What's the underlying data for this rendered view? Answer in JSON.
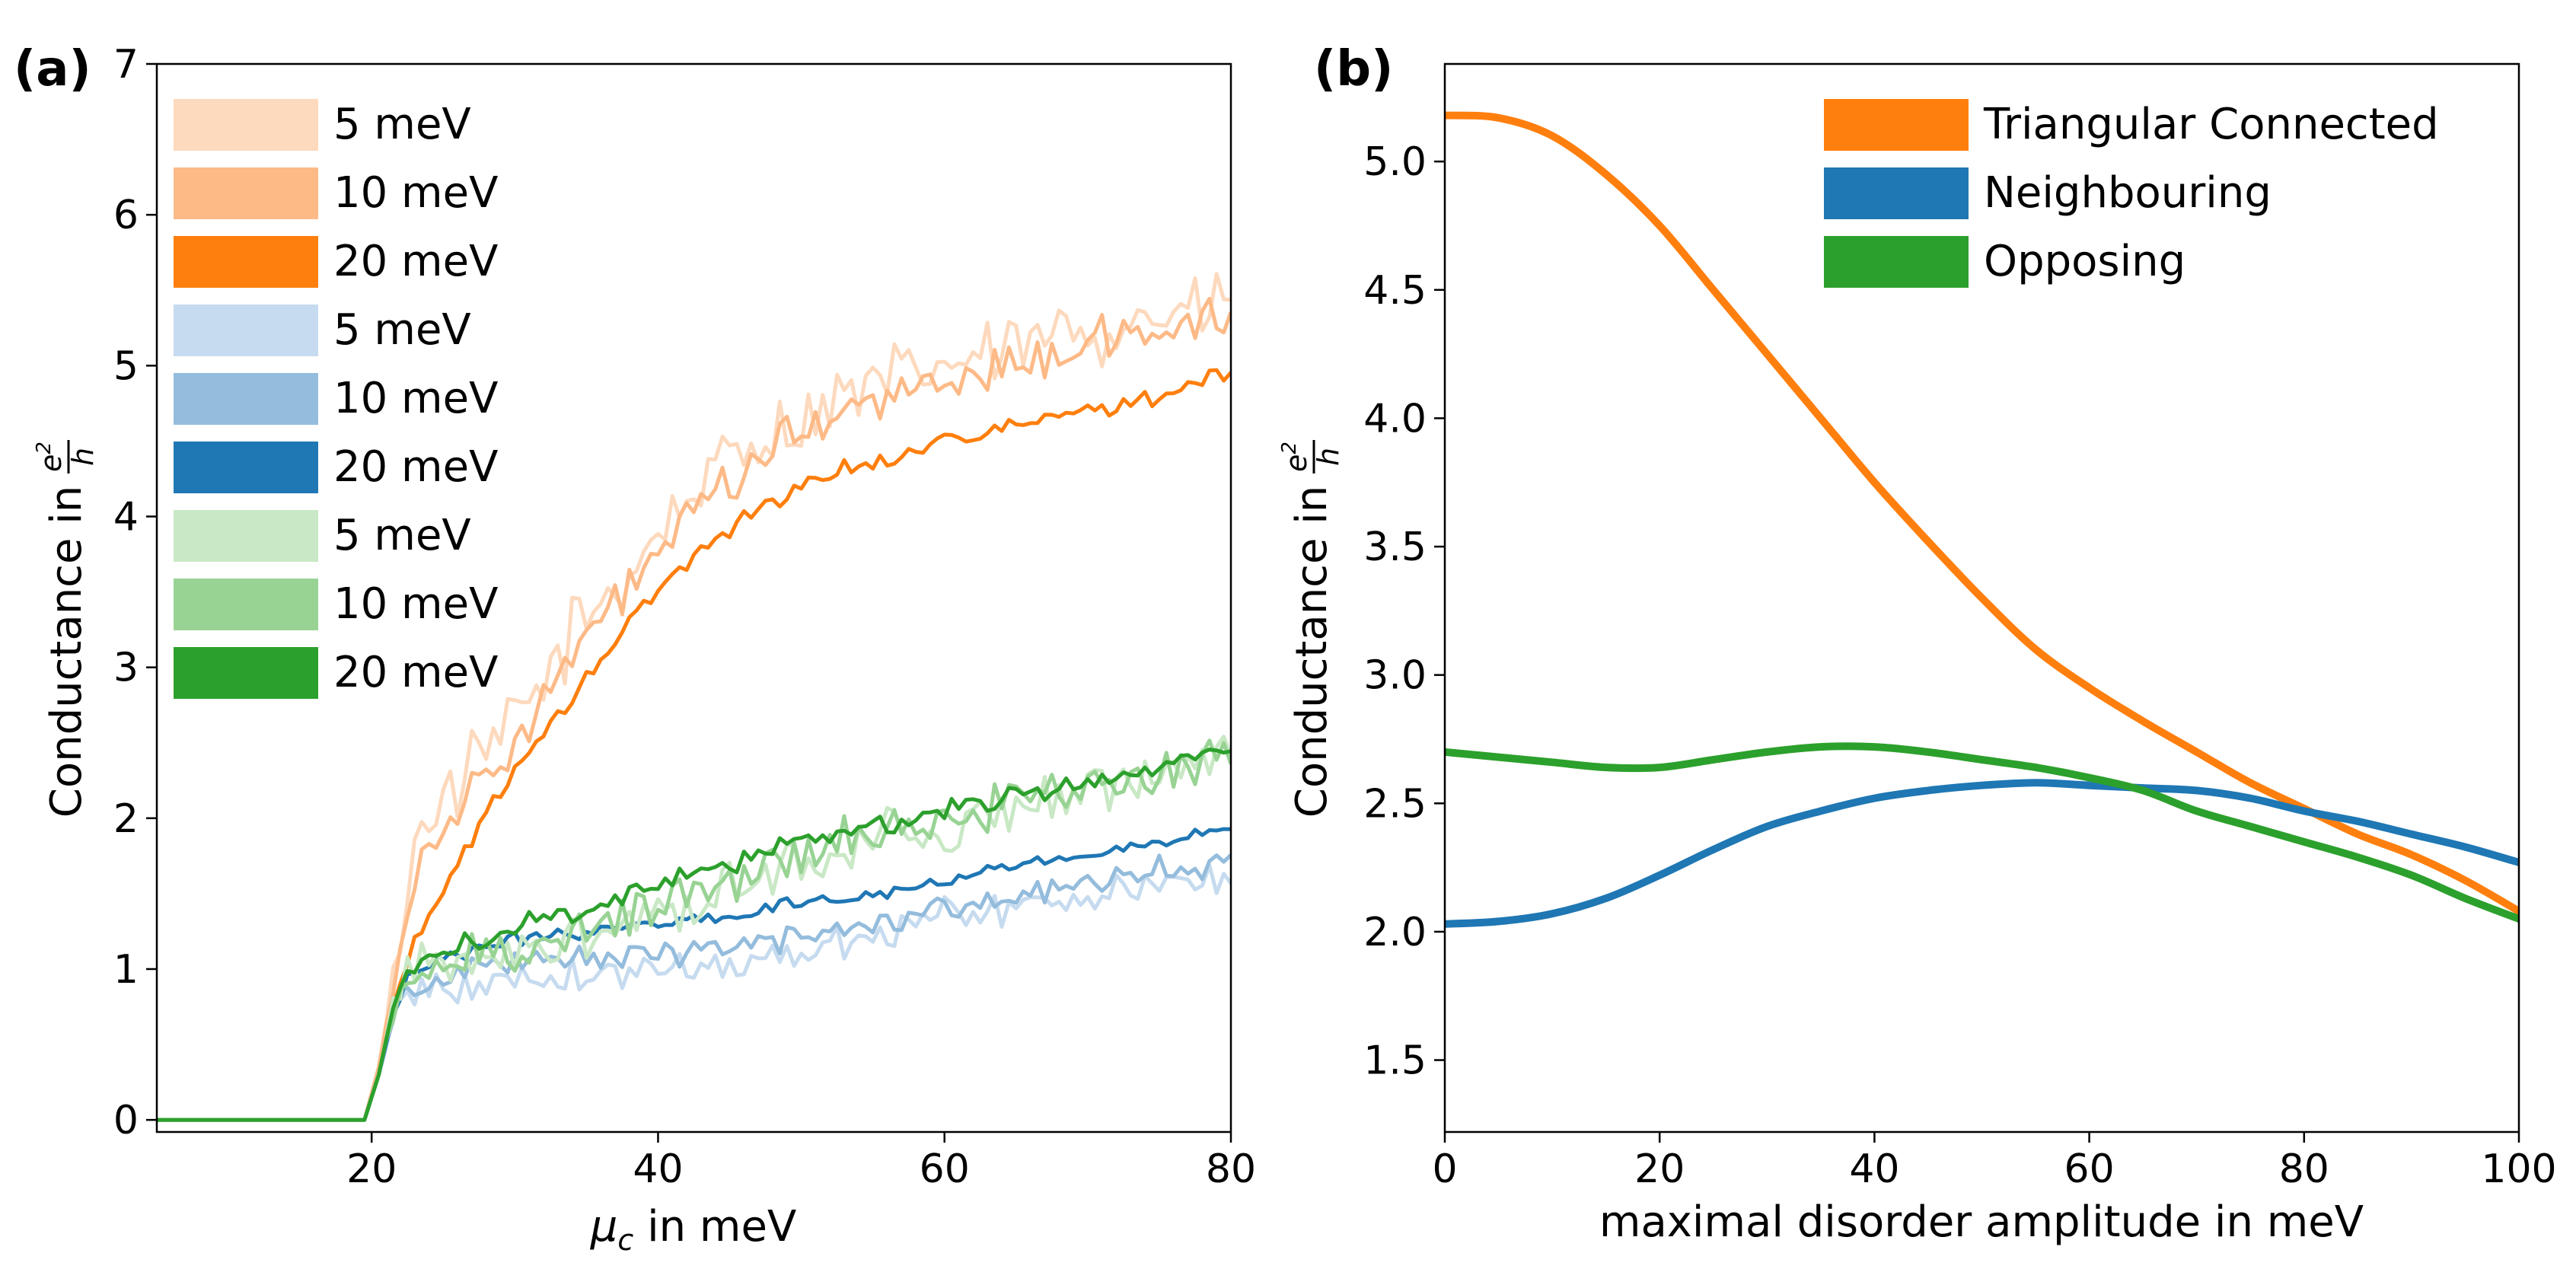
{
  "chart_data": [
    {
      "type": "line",
      "panel_label": "(a)",
      "xlabel_symbol": "μ",
      "xlabel_sub": "c",
      "xlabel_rest": " in meV",
      "ylabel_text": "Conductance in ",
      "ylabel_num": "e",
      "ylabel_num_sup": "2",
      "ylabel_den": "h",
      "xlim": [
        5,
        80
      ],
      "ylim": [
        -0.08,
        7
      ],
      "xticks": [
        20,
        40,
        60,
        80
      ],
      "xtick_labels": [
        "20",
        "40",
        "60",
        "80"
      ],
      "yticks": [
        0,
        1,
        2,
        3,
        4,
        5,
        6,
        7
      ],
      "ytick_labels": [
        "0",
        "1",
        "2",
        "3",
        "4",
        "5",
        "6",
        "7"
      ],
      "legend_location": "upper-left",
      "series": [
        {
          "name": "5 meV",
          "color": "#fdd9bd",
          "base": [
            [
              5,
              0
            ],
            [
              19.5,
              0
            ],
            [
              20.5,
              0.35
            ],
            [
              21.5,
              0.9
            ],
            [
              22.5,
              1.6
            ],
            [
              24,
              2.05
            ],
            [
              26,
              2.2
            ],
            [
              28,
              2.4
            ],
            [
              30,
              2.65
            ],
            [
              32,
              2.9
            ],
            [
              34,
              3.2
            ],
            [
              36,
              3.45
            ],
            [
              38,
              3.65
            ],
            [
              40,
              3.9
            ],
            [
              42,
              4.1
            ],
            [
              44,
              4.3
            ],
            [
              46,
              4.45
            ],
            [
              48,
              4.55
            ],
            [
              50,
              4.65
            ],
            [
              52,
              4.75
            ],
            [
              55,
              4.85
            ],
            [
              60,
              5.0
            ],
            [
              65,
              5.1
            ],
            [
              70,
              5.25
            ],
            [
              75,
              5.35
            ],
            [
              80,
              5.4
            ]
          ],
          "noise": 0.22
        },
        {
          "name": "10 meV",
          "color": "#fdba87",
          "base": [
            [
              5,
              0
            ],
            [
              19.5,
              0
            ],
            [
              20.5,
              0.35
            ],
            [
              21.5,
              0.9
            ],
            [
              22.5,
              1.45
            ],
            [
              24,
              1.85
            ],
            [
              26,
              2.05
            ],
            [
              28,
              2.25
            ],
            [
              30,
              2.5
            ],
            [
              32,
              2.8
            ],
            [
              34,
              3.05
            ],
            [
              36,
              3.3
            ],
            [
              38,
              3.55
            ],
            [
              40,
              3.75
            ],
            [
              42,
              3.95
            ],
            [
              44,
              4.15
            ],
            [
              46,
              4.3
            ],
            [
              48,
              4.45
            ],
            [
              50,
              4.55
            ],
            [
              52,
              4.65
            ],
            [
              55,
              4.75
            ],
            [
              60,
              4.9
            ],
            [
              65,
              5.0
            ],
            [
              70,
              5.15
            ],
            [
              75,
              5.25
            ],
            [
              80,
              5.3
            ]
          ],
          "noise": 0.13
        },
        {
          "name": "20 meV",
          "color": "#ff7f0e",
          "base": [
            [
              5,
              0
            ],
            [
              19.5,
              0
            ],
            [
              20.5,
              0.3
            ],
            [
              21.5,
              0.75
            ],
            [
              22.5,
              1.05
            ],
            [
              24,
              1.35
            ],
            [
              26,
              1.7
            ],
            [
              28,
              2.05
            ],
            [
              30,
              2.3
            ],
            [
              32,
              2.55
            ],
            [
              34,
              2.8
            ],
            [
              36,
              3.05
            ],
            [
              38,
              3.3
            ],
            [
              40,
              3.5
            ],
            [
              42,
              3.7
            ],
            [
              44,
              3.85
            ],
            [
              46,
              4.0
            ],
            [
              48,
              4.1
            ],
            [
              50,
              4.2
            ],
            [
              52,
              4.3
            ],
            [
              55,
              4.35
            ],
            [
              60,
              4.5
            ],
            [
              65,
              4.6
            ],
            [
              70,
              4.7
            ],
            [
              75,
              4.8
            ],
            [
              80,
              4.95
            ]
          ],
          "noise": 0.05
        },
        {
          "name": "5 meV",
          "color": "#c6dbef",
          "base": [
            [
              5,
              0
            ],
            [
              19.5,
              0
            ],
            [
              20.5,
              0.3
            ],
            [
              21.5,
              0.65
            ],
            [
              22.5,
              0.85
            ],
            [
              24,
              0.9
            ],
            [
              26,
              0.85
            ],
            [
              28,
              0.9
            ],
            [
              30,
              0.95
            ],
            [
              35,
              0.95
            ],
            [
              40,
              1.0
            ],
            [
              45,
              1.05
            ],
            [
              50,
              1.1
            ],
            [
              55,
              1.25
            ],
            [
              60,
              1.35
            ],
            [
              65,
              1.4
            ],
            [
              70,
              1.5
            ],
            [
              75,
              1.55
            ],
            [
              80,
              1.6
            ]
          ],
          "noise": 0.1
        },
        {
          "name": "10 meV",
          "color": "#94bcdc",
          "base": [
            [
              5,
              0
            ],
            [
              19.5,
              0
            ],
            [
              20.5,
              0.3
            ],
            [
              21.5,
              0.7
            ],
            [
              22.5,
              0.9
            ],
            [
              24,
              0.95
            ],
            [
              26,
              0.95
            ],
            [
              28,
              1.0
            ],
            [
              30,
              1.05
            ],
            [
              35,
              1.05
            ],
            [
              40,
              1.1
            ],
            [
              45,
              1.15
            ],
            [
              50,
              1.2
            ],
            [
              55,
              1.3
            ],
            [
              60,
              1.4
            ],
            [
              65,
              1.5
            ],
            [
              70,
              1.55
            ],
            [
              75,
              1.65
            ],
            [
              80,
              1.7
            ]
          ],
          "noise": 0.08
        },
        {
          "name": "20 meV",
          "color": "#1f77b4",
          "base": [
            [
              5,
              0
            ],
            [
              19.5,
              0
            ],
            [
              20.5,
              0.3
            ],
            [
              21.5,
              0.7
            ],
            [
              22.5,
              0.95
            ],
            [
              24,
              1.05
            ],
            [
              26,
              1.1
            ],
            [
              28,
              1.15
            ],
            [
              30,
              1.2
            ],
            [
              35,
              1.25
            ],
            [
              40,
              1.3
            ],
            [
              45,
              1.35
            ],
            [
              50,
              1.45
            ],
            [
              55,
              1.5
            ],
            [
              60,
              1.6
            ],
            [
              65,
              1.7
            ],
            [
              70,
              1.75
            ],
            [
              75,
              1.85
            ],
            [
              80,
              1.95
            ]
          ],
          "noise": 0.04
        },
        {
          "name": "5 meV",
          "color": "#c9e8c5",
          "base": [
            [
              5,
              0
            ],
            [
              19.5,
              0
            ],
            [
              20.5,
              0.3
            ],
            [
              21.5,
              0.75
            ],
            [
              22.5,
              0.95
            ],
            [
              24,
              1.0
            ],
            [
              26,
              1.0
            ],
            [
              28,
              1.05
            ],
            [
              30,
              1.1
            ],
            [
              35,
              1.2
            ],
            [
              40,
              1.35
            ],
            [
              45,
              1.55
            ],
            [
              50,
              1.7
            ],
            [
              55,
              1.85
            ],
            [
              60,
              1.95
            ],
            [
              65,
              2.05
            ],
            [
              70,
              2.15
            ],
            [
              75,
              2.3
            ],
            [
              80,
              2.4
            ]
          ],
          "noise": 0.16
        },
        {
          "name": "10 meV",
          "color": "#98d394",
          "base": [
            [
              5,
              0
            ],
            [
              19.5,
              0
            ],
            [
              20.5,
              0.3
            ],
            [
              21.5,
              0.75
            ],
            [
              22.5,
              0.95
            ],
            [
              24,
              1.0
            ],
            [
              26,
              1.05
            ],
            [
              28,
              1.1
            ],
            [
              30,
              1.15
            ],
            [
              35,
              1.25
            ],
            [
              40,
              1.4
            ],
            [
              45,
              1.6
            ],
            [
              50,
              1.75
            ],
            [
              55,
              1.9
            ],
            [
              60,
              2.0
            ],
            [
              65,
              2.1
            ],
            [
              70,
              2.2
            ],
            [
              75,
              2.3
            ],
            [
              80,
              2.4
            ]
          ],
          "noise": 0.14
        },
        {
          "name": "20 meV",
          "color": "#2ca02c",
          "base": [
            [
              5,
              0
            ],
            [
              19.5,
              0
            ],
            [
              20.5,
              0.3
            ],
            [
              21.5,
              0.75
            ],
            [
              22.5,
              0.95
            ],
            [
              24,
              1.05
            ],
            [
              26,
              1.15
            ],
            [
              28,
              1.2
            ],
            [
              30,
              1.3
            ],
            [
              35,
              1.4
            ],
            [
              40,
              1.55
            ],
            [
              45,
              1.7
            ],
            [
              50,
              1.85
            ],
            [
              55,
              1.95
            ],
            [
              60,
              2.05
            ],
            [
              65,
              2.15
            ],
            [
              70,
              2.25
            ],
            [
              75,
              2.35
            ],
            [
              80,
              2.45
            ]
          ],
          "noise": 0.06
        }
      ]
    },
    {
      "type": "line",
      "panel_label": "(b)",
      "xlabel": "maximal disorder amplitude in meV",
      "ylabel_text": "Conductance in ",
      "ylabel_num": "e",
      "ylabel_num_sup": "2",
      "ylabel_den": "h",
      "xlim": [
        0,
        100
      ],
      "ylim": [
        1.22,
        5.38
      ],
      "xticks": [
        0,
        20,
        40,
        60,
        80,
        100
      ],
      "xtick_labels": [
        "0",
        "20",
        "40",
        "60",
        "80",
        "100"
      ],
      "yticks": [
        1.5,
        2.0,
        2.5,
        3.0,
        3.5,
        4.0,
        4.5,
        5.0
      ],
      "ytick_labels": [
        "1.5",
        "2.0",
        "2.5",
        "3.0",
        "3.5",
        "4.0",
        "4.5",
        "5.0"
      ],
      "legend_location": "upper-right",
      "series": [
        {
          "name": "Triangular Connected",
          "color": "#ff7f0e",
          "x": [
            0,
            5,
            10,
            15,
            20,
            25,
            30,
            35,
            40,
            45,
            50,
            55,
            60,
            65,
            70,
            75,
            80,
            85,
            90,
            95,
            100
          ],
          "y": [
            5.18,
            5.17,
            5.1,
            4.95,
            4.75,
            4.5,
            4.25,
            4.0,
            3.75,
            3.52,
            3.3,
            3.1,
            2.95,
            2.82,
            2.7,
            2.58,
            2.48,
            2.38,
            2.3,
            2.2,
            2.08
          ]
        },
        {
          "name": "Neighbouring",
          "color": "#1f77b4",
          "x": [
            0,
            5,
            10,
            15,
            20,
            25,
            30,
            35,
            40,
            45,
            50,
            55,
            60,
            65,
            70,
            75,
            80,
            85,
            90,
            95,
            100
          ],
          "y": [
            2.03,
            2.04,
            2.07,
            2.13,
            2.22,
            2.32,
            2.41,
            2.47,
            2.52,
            2.55,
            2.57,
            2.58,
            2.57,
            2.56,
            2.55,
            2.52,
            2.47,
            2.43,
            2.38,
            2.33,
            2.27
          ]
        },
        {
          "name": "Opposing",
          "color": "#2ca02c",
          "x": [
            0,
            5,
            10,
            15,
            20,
            25,
            30,
            35,
            40,
            45,
            50,
            55,
            60,
            65,
            70,
            75,
            80,
            85,
            90,
            95,
            100
          ],
          "y": [
            2.7,
            2.68,
            2.66,
            2.64,
            2.64,
            2.67,
            2.7,
            2.72,
            2.72,
            2.7,
            2.67,
            2.64,
            2.6,
            2.55,
            2.47,
            2.41,
            2.35,
            2.29,
            2.22,
            2.13,
            2.05
          ]
        }
      ]
    }
  ]
}
